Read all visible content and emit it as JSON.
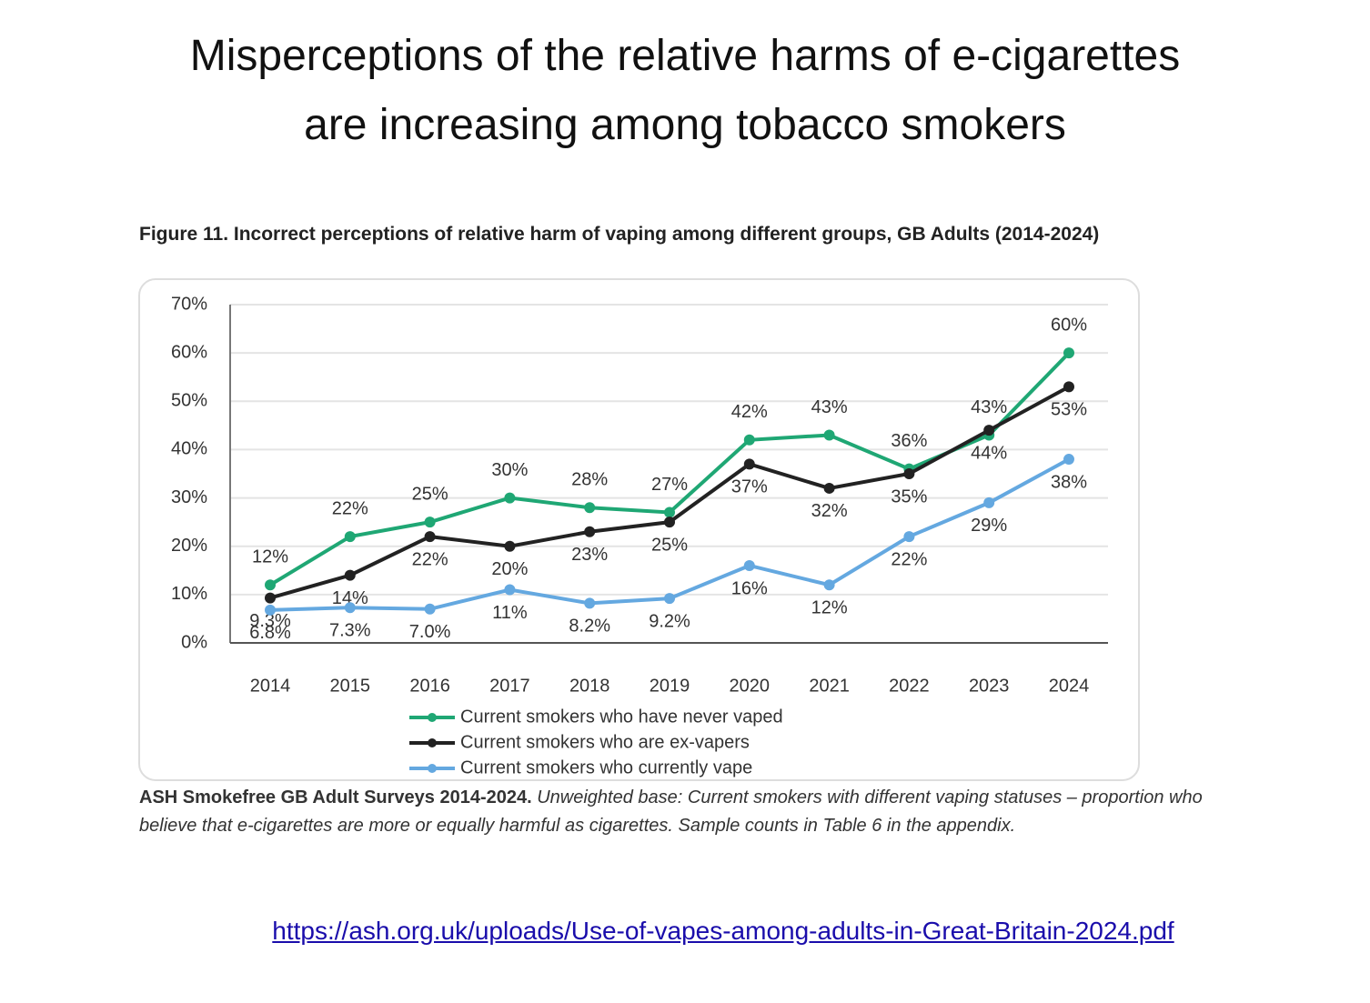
{
  "slide_title": [
    "Misperceptions of the relative harms of e-cigarettes",
    "are increasing among tobacco smokers"
  ],
  "chart_data": {
    "type": "line",
    "title": "Figure 11. Incorrect perceptions of relative harm of vaping among different groups, GB Adults (2014-2024)",
    "categories": [
      "2014",
      "2015",
      "2016",
      "2017",
      "2018",
      "2019",
      "2020",
      "2021",
      "2022",
      "2023",
      "2024"
    ],
    "ylim": [
      0,
      70
    ],
    "yticks": [
      {
        "value": 0,
        "label": "0%"
      },
      {
        "value": 10,
        "label": "10%"
      },
      {
        "value": 20,
        "label": "20%"
      },
      {
        "value": 30,
        "label": "30%"
      },
      {
        "value": 40,
        "label": "40%"
      },
      {
        "value": 50,
        "label": "50%"
      },
      {
        "value": 60,
        "label": "60%"
      },
      {
        "value": 70,
        "label": "70%"
      }
    ],
    "grid": true,
    "series": [
      {
        "name": "Current smokers who have never vaped",
        "color": "#1fa774",
        "values": [
          12,
          22,
          25,
          30,
          28,
          27,
          42,
          43,
          36,
          43,
          60
        ],
        "value_labels": [
          "12%",
          "22%",
          "25%",
          "30%",
          "28%",
          "27%",
          "42%",
          "43%",
          "36%",
          "43%",
          "60%"
        ]
      },
      {
        "name": "Current smokers who are ex-vapers",
        "color": "#222222",
        "values": [
          9.3,
          14,
          22,
          20,
          23,
          25,
          37,
          32,
          35,
          44,
          53
        ],
        "value_labels": [
          "9.3%",
          "14%",
          "22%",
          "20%",
          "23%",
          "25%",
          "37%",
          "32%",
          "35%",
          "44%",
          "53%"
        ]
      },
      {
        "name": "Current smokers who currently vape",
        "color": "#64a8e0",
        "values": [
          6.8,
          7.3,
          7.0,
          11,
          8.2,
          9.2,
          16,
          12,
          22,
          29,
          38
        ],
        "value_labels": [
          "6.8%",
          "7.3%",
          "7.0%",
          "11%",
          "8.2%",
          "9.2%",
          "16%",
          "12%",
          "22%",
          "29%",
          "38%"
        ]
      }
    ],
    "source_bold": "ASH Smokefree GB Adult Surveys 2014-2024.",
    "source_italic": "Unweighted base: Current smokers with different vaping statuses – proportion who believe that e-cigarettes are more or equally harmful as cigarettes. Sample counts in Table 6 in the appendix."
  },
  "link": "https://ash.org.uk/uploads/Use-of-vapes-among-adults-in-Great-Britain-2024.pdf"
}
